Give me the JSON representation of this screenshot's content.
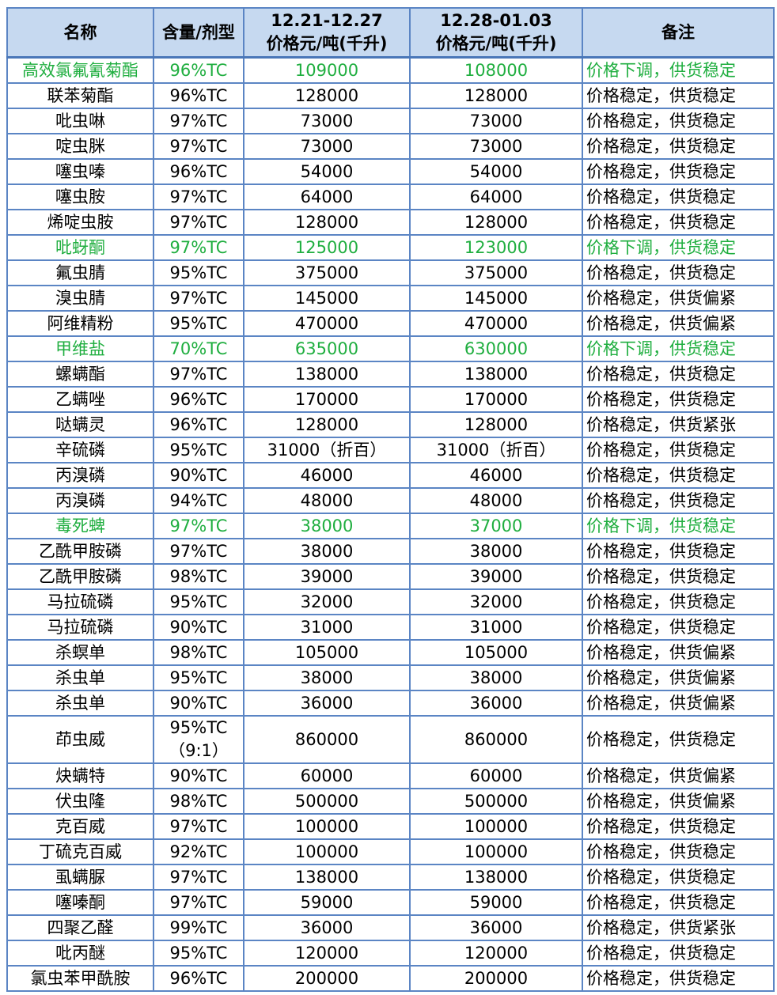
{
  "headers": {
    "name": "名称",
    "spec": "含量/剂型",
    "week1_dates": "12.21-12.27",
    "week1_unit": "价格元/吨(千升)",
    "week2_dates": "12.28-01.03",
    "week2_unit": "价格元/吨(千升)",
    "note": "备注"
  },
  "colors": {
    "price_down": "#1fae3f",
    "header_bg": "#c6d9f0",
    "border": "#5b85c4"
  },
  "rows": [
    {
      "name": "高效氯氟氰菊酯",
      "spec": "96%TC",
      "p1": "109000",
      "p2": "108000",
      "note": "价格下调，供货稳定",
      "down": true
    },
    {
      "name": "联苯菊酯",
      "spec": "96%TC",
      "p1": "128000",
      "p2": "128000",
      "note": "价格稳定，供货稳定"
    },
    {
      "name": "吡虫啉",
      "spec": "97%TC",
      "p1": "73000",
      "p2": "73000",
      "note": "价格稳定，供货稳定"
    },
    {
      "name": "啶虫脒",
      "spec": "97%TC",
      "p1": "73000",
      "p2": "73000",
      "note": "价格稳定，供货稳定"
    },
    {
      "name": "噻虫嗪",
      "spec": "96%TC",
      "p1": "54000",
      "p2": "54000",
      "note": "价格稳定，供货稳定"
    },
    {
      "name": "噻虫胺",
      "spec": "97%TC",
      "p1": "64000",
      "p2": "64000",
      "note": "价格稳定，供货稳定"
    },
    {
      "name": "烯啶虫胺",
      "spec": "97%TC",
      "p1": "128000",
      "p2": "128000",
      "note": "价格稳定，供货稳定"
    },
    {
      "name": "吡蚜酮",
      "spec": "97%TC",
      "p1": "125000",
      "p2": "123000",
      "note": "价格下调，供货稳定",
      "down": true
    },
    {
      "name": "氟虫腈",
      "spec": "95%TC",
      "p1": "375000",
      "p2": "375000",
      "note": "价格稳定，供货稳定"
    },
    {
      "name": "溴虫腈",
      "spec": "97%TC",
      "p1": "145000",
      "p2": "145000",
      "note": "价格稳定，供货偏紧"
    },
    {
      "name": "阿维精粉",
      "spec": "95%TC",
      "p1": "470000",
      "p2": "470000",
      "note": "价格稳定，供货偏紧"
    },
    {
      "name": "甲维盐",
      "spec": "70%TC",
      "p1": "635000",
      "p2": "630000",
      "note": "价格下调，供货稳定",
      "down": true
    },
    {
      "name": "螺螨酯",
      "spec": "97%TC",
      "p1": "138000",
      "p2": "138000",
      "note": "价格稳定，供货稳定"
    },
    {
      "name": "乙螨唑",
      "spec": "96%TC",
      "p1": "170000",
      "p2": "170000",
      "note": "价格稳定，供货稳定"
    },
    {
      "name": "哒螨灵",
      "spec": "96%TC",
      "p1": "128000",
      "p2": "128000",
      "note": "价格稳定，供货紧张"
    },
    {
      "name": "辛硫磷",
      "spec": "95%TC",
      "p1": "31000（折百）",
      "p2": "31000（折百）",
      "note": "价格稳定，供货稳定"
    },
    {
      "name": "丙溴磷",
      "spec": "90%TC",
      "p1": "46000",
      "p2": "46000",
      "note": "价格稳定，供货稳定"
    },
    {
      "name": "丙溴磷",
      "spec": "94%TC",
      "p1": "48000",
      "p2": "48000",
      "note": "价格稳定，供货稳定"
    },
    {
      "name": "毒死蜱",
      "spec": "97%TC",
      "p1": "38000",
      "p2": "37000",
      "note": "价格下调，供货稳定",
      "down": true
    },
    {
      "name": "乙酰甲胺磷",
      "spec": "97%TC",
      "p1": "38000",
      "p2": "38000",
      "note": "价格稳定，供货稳定"
    },
    {
      "name": "乙酰甲胺磷",
      "spec": "98%TC",
      "p1": "39000",
      "p2": "39000",
      "note": "价格稳定，供货稳定"
    },
    {
      "name": "马拉硫磷",
      "spec": "95%TC",
      "p1": "32000",
      "p2": "32000",
      "note": "价格稳定，供货稳定"
    },
    {
      "name": "马拉硫磷",
      "spec": "90%TC",
      "p1": "31000",
      "p2": "31000",
      "note": "价格稳定，供货稳定"
    },
    {
      "name": "杀螟单",
      "spec": "98%TC",
      "p1": "105000",
      "p2": "105000",
      "note": "价格稳定，供货偏紧"
    },
    {
      "name": "杀虫单",
      "spec": "95%TC",
      "p1": "38000",
      "p2": "38000",
      "note": "价格稳定，供货偏紧"
    },
    {
      "name": "杀虫单",
      "spec": "90%TC",
      "p1": "36000",
      "p2": "36000",
      "note": "价格稳定，供货偏紧"
    },
    {
      "name": "茚虫威",
      "spec": "95%TC（9:1）",
      "p1": "860000",
      "p2": "860000",
      "note": "价格稳定，供货稳定",
      "tall": true
    },
    {
      "name": "炔螨特",
      "spec": "90%TC",
      "p1": "60000",
      "p2": "60000",
      "note": "价格稳定，供货偏紧"
    },
    {
      "name": "伏虫隆",
      "spec": "98%TC",
      "p1": "500000",
      "p2": "500000",
      "note": "价格稳定，供货偏紧"
    },
    {
      "name": "克百威",
      "spec": "97%TC",
      "p1": "100000",
      "p2": "100000",
      "note": "价格稳定，供货稳定"
    },
    {
      "name": "丁硫克百威",
      "spec": "92%TC",
      "p1": "100000",
      "p2": "100000",
      "note": "价格稳定，供货稳定"
    },
    {
      "name": "虱螨脲",
      "spec": "97%TC",
      "p1": "138000",
      "p2": "138000",
      "note": "价格稳定，供货稳定"
    },
    {
      "name": "噻嗪酮",
      "spec": "97%TC",
      "p1": "59000",
      "p2": "59000",
      "note": "价格稳定，供货稳定"
    },
    {
      "name": "四聚乙醛",
      "spec": "99%TC",
      "p1": "36000",
      "p2": "36000",
      "note": "价格稳定，供货紧张"
    },
    {
      "name": "吡丙醚",
      "spec": "95%TC",
      "p1": "120000",
      "p2": "120000",
      "note": "价格稳定，供货稳定"
    },
    {
      "name": "氯虫苯甲酰胺",
      "spec": "96%TC",
      "p1": "200000",
      "p2": "200000",
      "note": "价格稳定，供货稳定"
    }
  ]
}
